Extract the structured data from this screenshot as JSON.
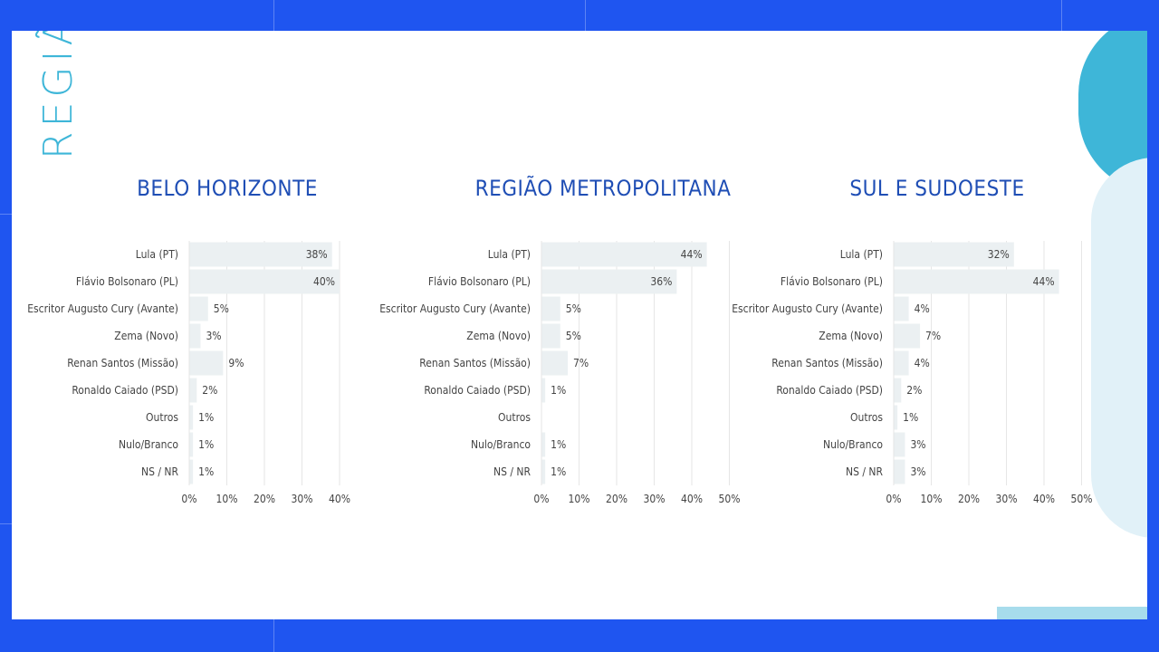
{
  "slide": {
    "side_title": "REGIÃO"
  },
  "chart_data": [
    {
      "type": "bar",
      "orientation": "horizontal",
      "title": "BELO HORIZONTE",
      "categories": [
        "Lula (PT)",
        "Flávio Bolsonaro (PL)",
        "Escritor Augusto Cury (Avante)",
        "Zema (Novo)",
        "Renan Santos (Missão)",
        "Ronaldo Caiado (PSD)",
        "Outros",
        "Nulo/Branco",
        "NS / NR"
      ],
      "values": [
        38,
        40,
        5,
        3,
        9,
        2,
        1,
        1,
        1
      ],
      "value_labels": [
        "38%",
        "40%",
        "5%",
        "3%",
        "9%",
        "2%",
        "1%",
        "1%",
        "1%"
      ],
      "xlim": [
        0,
        40
      ],
      "xticks": [
        "0%",
        "10%",
        "20%",
        "30%",
        "40%"
      ],
      "grid": true
    },
    {
      "type": "bar",
      "orientation": "horizontal",
      "title": "REGIÃO METROPOLITANA",
      "categories": [
        "Lula (PT)",
        "Flávio Bolsonaro (PL)",
        "Escritor Augusto Cury (Avante)",
        "Zema (Novo)",
        "Renan Santos (Missão)",
        "Ronaldo Caiado (PSD)",
        "Outros",
        "Nulo/Branco",
        "NS / NR"
      ],
      "values": [
        44,
        36,
        5,
        5,
        7,
        1,
        0,
        1,
        1
      ],
      "value_labels": [
        "44%",
        "36%",
        "5%",
        "5%",
        "7%",
        "1%",
        "",
        "1%",
        "1%"
      ],
      "xlim": [
        0,
        50
      ],
      "xticks": [
        "0%",
        "10%",
        "20%",
        "30%",
        "40%",
        "50%"
      ],
      "grid": true
    },
    {
      "type": "bar",
      "orientation": "horizontal",
      "title": "SUL E SUDOESTE",
      "categories": [
        "Lula (PT)",
        "Flávio Bolsonaro (PL)",
        "Escritor Augusto Cury (Avante)",
        "Zema (Novo)",
        "Renan Santos (Missão)",
        "Ronaldo Caiado (PSD)",
        "Outros",
        "Nulo/Branco",
        "NS / NR"
      ],
      "values": [
        32,
        44,
        4,
        7,
        4,
        2,
        1,
        3,
        3
      ],
      "value_labels": [
        "32%",
        "44%",
        "4%",
        "7%",
        "4%",
        "2%",
        "1%",
        "3%",
        "3%"
      ],
      "xlim": [
        0,
        50
      ],
      "xticks": [
        "0%",
        "10%",
        "20%",
        "30%",
        "40%",
        "50%"
      ],
      "grid": true
    }
  ],
  "colors": {
    "bar": "#ebf0f2",
    "grid": "#e6e6e6",
    "title": "#1f4eb5",
    "accent": "#3eb6d8",
    "background": "#1f55f0"
  }
}
